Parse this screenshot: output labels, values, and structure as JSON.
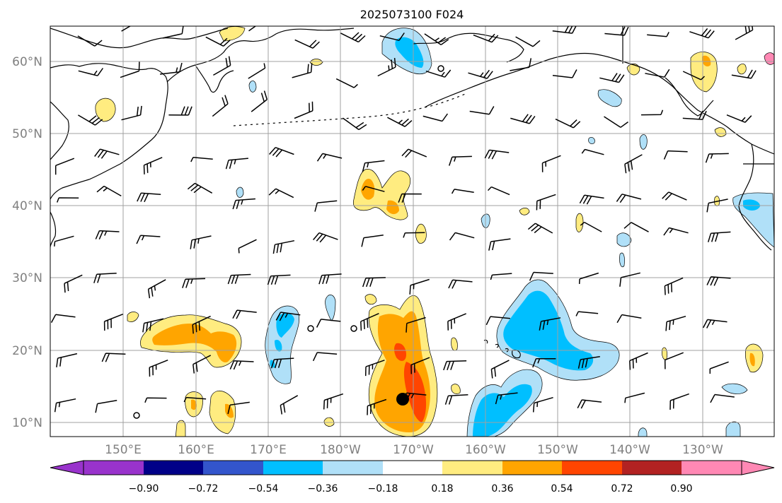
{
  "title": "2025073100 F024",
  "latitude_labels": [
    "60°N",
    "50°N",
    "40°N",
    "30°N",
    "20°N",
    "10°N"
  ],
  "longitude_labels": [
    "150°E",
    "160°E",
    "170°E",
    "180°W",
    "170°W",
    "160°W",
    "150°W",
    "140°W",
    "130°W"
  ],
  "colorbar": {
    "tick_labels": [
      "−0.90",
      "−0.72",
      "−0.54",
      "−0.36",
      "−0.18",
      "0.18",
      "0.36",
      "0.54",
      "0.72",
      "0.90"
    ],
    "colors": [
      "#9933cc",
      "#000088",
      "#3355cc",
      "#00bfff",
      "#b0e0f8",
      "#ffffff",
      "#ffec80",
      "#ffa500",
      "#ff4500",
      "#b22222",
      "#ff88b4"
    ]
  },
  "marker": {
    "lon": -171.5,
    "lat": 13
  },
  "colors": {
    "light_blue": "#b0e0f8",
    "blue": "#00bfff",
    "yellow": "#ffec80",
    "orange": "#ffa500",
    "red_orange": "#ff4500"
  }
}
